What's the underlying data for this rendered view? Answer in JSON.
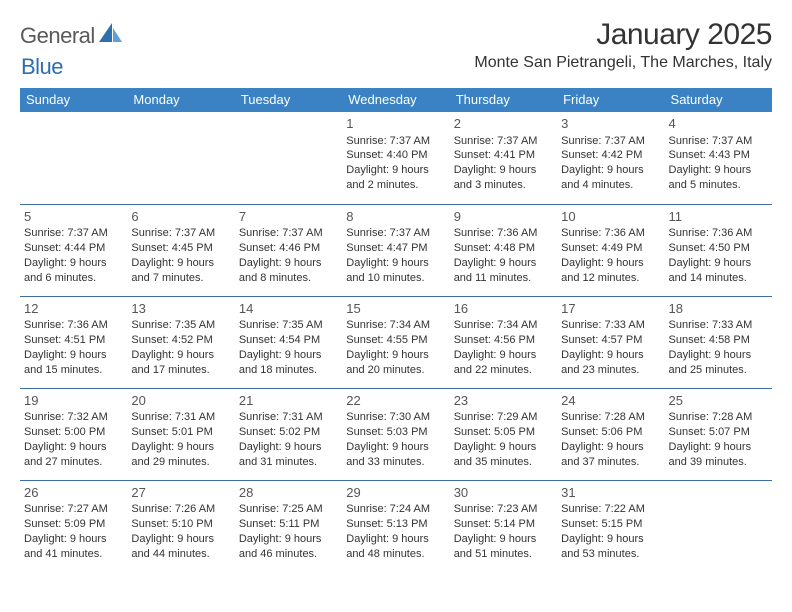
{
  "brand": {
    "text1": "General",
    "text2": "Blue",
    "logo_color": "#2f6fad"
  },
  "header": {
    "title": "January 2025",
    "location": "Monte San Pietrangeli, The Marches, Italy"
  },
  "colors": {
    "header_bg": "#3a82c4",
    "header_fg": "#ffffff",
    "row_border": "#3a6fa0",
    "text": "#333333"
  },
  "weekdays": [
    "Sunday",
    "Monday",
    "Tuesday",
    "Wednesday",
    "Thursday",
    "Friday",
    "Saturday"
  ],
  "weeks": [
    [
      null,
      null,
      null,
      {
        "n": "1",
        "sr": "7:37 AM",
        "ss": "4:40 PM",
        "dl": "9 hours and 2 minutes."
      },
      {
        "n": "2",
        "sr": "7:37 AM",
        "ss": "4:41 PM",
        "dl": "9 hours and 3 minutes."
      },
      {
        "n": "3",
        "sr": "7:37 AM",
        "ss": "4:42 PM",
        "dl": "9 hours and 4 minutes."
      },
      {
        "n": "4",
        "sr": "7:37 AM",
        "ss": "4:43 PM",
        "dl": "9 hours and 5 minutes."
      }
    ],
    [
      {
        "n": "5",
        "sr": "7:37 AM",
        "ss": "4:44 PM",
        "dl": "9 hours and 6 minutes."
      },
      {
        "n": "6",
        "sr": "7:37 AM",
        "ss": "4:45 PM",
        "dl": "9 hours and 7 minutes."
      },
      {
        "n": "7",
        "sr": "7:37 AM",
        "ss": "4:46 PM",
        "dl": "9 hours and 8 minutes."
      },
      {
        "n": "8",
        "sr": "7:37 AM",
        "ss": "4:47 PM",
        "dl": "9 hours and 10 minutes."
      },
      {
        "n": "9",
        "sr": "7:36 AM",
        "ss": "4:48 PM",
        "dl": "9 hours and 11 minutes."
      },
      {
        "n": "10",
        "sr": "7:36 AM",
        "ss": "4:49 PM",
        "dl": "9 hours and 12 minutes."
      },
      {
        "n": "11",
        "sr": "7:36 AM",
        "ss": "4:50 PM",
        "dl": "9 hours and 14 minutes."
      }
    ],
    [
      {
        "n": "12",
        "sr": "7:36 AM",
        "ss": "4:51 PM",
        "dl": "9 hours and 15 minutes."
      },
      {
        "n": "13",
        "sr": "7:35 AM",
        "ss": "4:52 PM",
        "dl": "9 hours and 17 minutes."
      },
      {
        "n": "14",
        "sr": "7:35 AM",
        "ss": "4:54 PM",
        "dl": "9 hours and 18 minutes."
      },
      {
        "n": "15",
        "sr": "7:34 AM",
        "ss": "4:55 PM",
        "dl": "9 hours and 20 minutes."
      },
      {
        "n": "16",
        "sr": "7:34 AM",
        "ss": "4:56 PM",
        "dl": "9 hours and 22 minutes."
      },
      {
        "n": "17",
        "sr": "7:33 AM",
        "ss": "4:57 PM",
        "dl": "9 hours and 23 minutes."
      },
      {
        "n": "18",
        "sr": "7:33 AM",
        "ss": "4:58 PM",
        "dl": "9 hours and 25 minutes."
      }
    ],
    [
      {
        "n": "19",
        "sr": "7:32 AM",
        "ss": "5:00 PM",
        "dl": "9 hours and 27 minutes."
      },
      {
        "n": "20",
        "sr": "7:31 AM",
        "ss": "5:01 PM",
        "dl": "9 hours and 29 minutes."
      },
      {
        "n": "21",
        "sr": "7:31 AM",
        "ss": "5:02 PM",
        "dl": "9 hours and 31 minutes."
      },
      {
        "n": "22",
        "sr": "7:30 AM",
        "ss": "5:03 PM",
        "dl": "9 hours and 33 minutes."
      },
      {
        "n": "23",
        "sr": "7:29 AM",
        "ss": "5:05 PM",
        "dl": "9 hours and 35 minutes."
      },
      {
        "n": "24",
        "sr": "7:28 AM",
        "ss": "5:06 PM",
        "dl": "9 hours and 37 minutes."
      },
      {
        "n": "25",
        "sr": "7:28 AM",
        "ss": "5:07 PM",
        "dl": "9 hours and 39 minutes."
      }
    ],
    [
      {
        "n": "26",
        "sr": "7:27 AM",
        "ss": "5:09 PM",
        "dl": "9 hours and 41 minutes."
      },
      {
        "n": "27",
        "sr": "7:26 AM",
        "ss": "5:10 PM",
        "dl": "9 hours and 44 minutes."
      },
      {
        "n": "28",
        "sr": "7:25 AM",
        "ss": "5:11 PM",
        "dl": "9 hours and 46 minutes."
      },
      {
        "n": "29",
        "sr": "7:24 AM",
        "ss": "5:13 PM",
        "dl": "9 hours and 48 minutes."
      },
      {
        "n": "30",
        "sr": "7:23 AM",
        "ss": "5:14 PM",
        "dl": "9 hours and 51 minutes."
      },
      {
        "n": "31",
        "sr": "7:22 AM",
        "ss": "5:15 PM",
        "dl": "9 hours and 53 minutes."
      },
      null
    ]
  ],
  "labels": {
    "sunrise": "Sunrise:",
    "sunset": "Sunset:",
    "daylight": "Daylight:"
  }
}
